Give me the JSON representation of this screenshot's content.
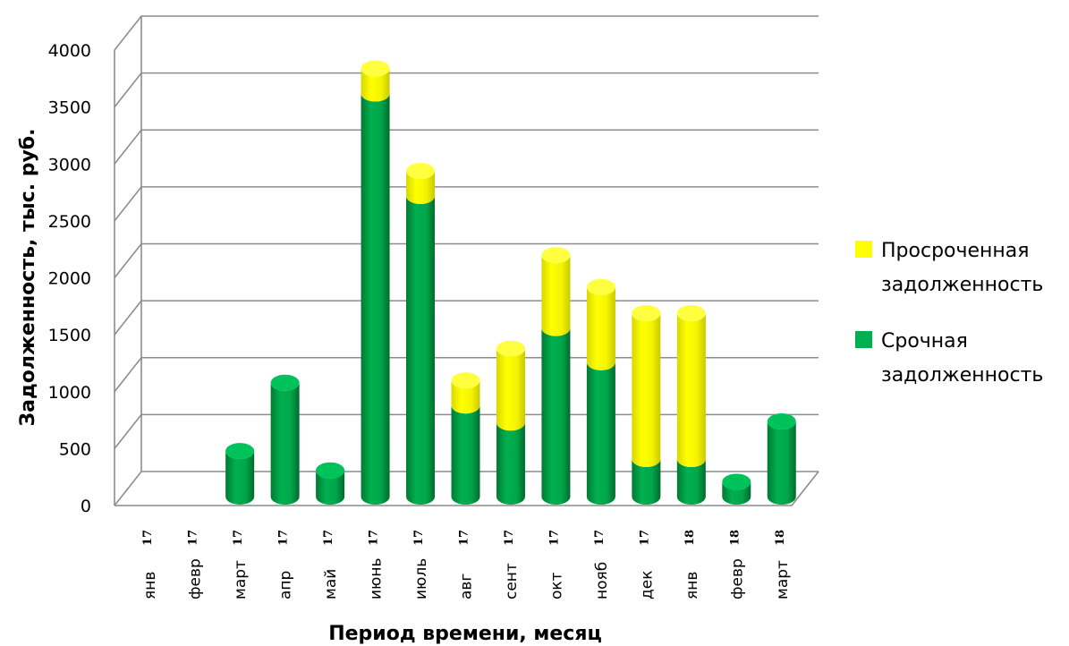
{
  "chart_data": {
    "type": "bar",
    "stacked": true,
    "three_d": true,
    "ylabel": "Задолженность, тыс. руб.",
    "xlabel": "Период времени, месяц",
    "ylim": [
      0,
      4000
    ],
    "yticks": [
      0,
      500,
      1000,
      1500,
      2000,
      2500,
      3000,
      3500,
      4000
    ],
    "grid": true,
    "legend_position": "right",
    "categories": [
      {
        "label": "янв",
        "year": "17"
      },
      {
        "label": "февр",
        "year": "17"
      },
      {
        "label": "март",
        "year": "17"
      },
      {
        "label": "апр",
        "year": "17"
      },
      {
        "label": "май",
        "year": "17"
      },
      {
        "label": "июнь",
        "year": "17"
      },
      {
        "label": "июль",
        "year": "17"
      },
      {
        "label": "авг",
        "year": "17"
      },
      {
        "label": "сент",
        "year": "17"
      },
      {
        "label": "окт",
        "year": "17"
      },
      {
        "label": "нояб",
        "year": "17"
      },
      {
        "label": "дек",
        "year": "17"
      },
      {
        "label": "янв",
        "year": "18"
      },
      {
        "label": "февр",
        "year": "18"
      },
      {
        "label": "март",
        "year": "18"
      }
    ],
    "series": [
      {
        "name": "Срочная задолженность",
        "color": "#00b050",
        "values": [
          0,
          0,
          400,
          1000,
          230,
          3540,
          2640,
          800,
          650,
          1480,
          1180,
          330,
          330,
          130,
          660
        ]
      },
      {
        "name": "Просроченная задолженность",
        "color": "#ffff00",
        "values": [
          0,
          0,
          0,
          0,
          0,
          220,
          220,
          220,
          650,
          640,
          660,
          1280,
          1280,
          0,
          0
        ]
      }
    ],
    "legend": [
      {
        "line1": "Просроченная",
        "line2": "задолженность",
        "color": "#ffff00"
      },
      {
        "line1": "Срочная",
        "line2": "задолженность",
        "color": "#00b050"
      }
    ]
  }
}
